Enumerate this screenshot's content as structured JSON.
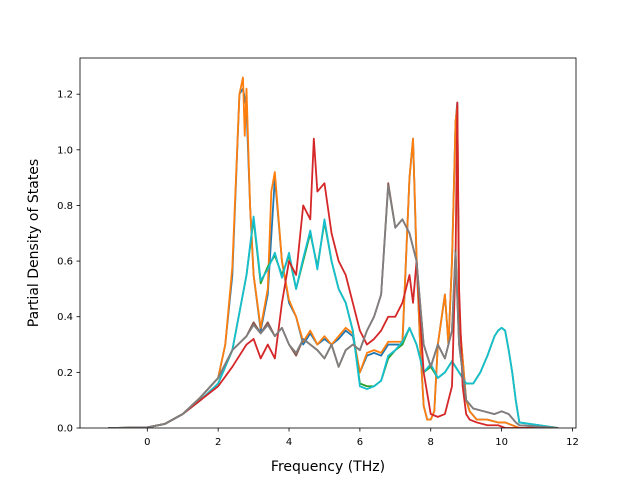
{
  "chart_data": {
    "type": "line",
    "title": "",
    "xlabel": "Frequency (THz)",
    "ylabel": "Partial Density of States",
    "xlim": [
      -1.9,
      12.1
    ],
    "ylim": [
      0.0,
      1.33
    ],
    "xticks": [
      0,
      2,
      4,
      6,
      8,
      10,
      12
    ],
    "xtick_labels": [
      "0",
      "2",
      "4",
      "6",
      "8",
      "10",
      "12"
    ],
    "yticks": [
      0.0,
      0.2,
      0.4,
      0.6,
      0.8,
      1.0,
      1.2
    ],
    "ytick_labels": [
      "0.0",
      "0.2",
      "0.4",
      "0.6",
      "0.8",
      "1.0",
      "1.2"
    ],
    "grid": false,
    "legend": "none",
    "series": [
      {
        "color": "#1f77b4",
        "x": [
          -1.1,
          0,
          0.5,
          1,
          1.5,
          2,
          2.2,
          2.4,
          2.6,
          2.7,
          2.8,
          2.9,
          3.0,
          3.2,
          3.4,
          3.6,
          3.8,
          4.0,
          4.2,
          4.4,
          4.6,
          4.8,
          5.0,
          5.2,
          5.4,
          5.6,
          5.8,
          6.0,
          6.2,
          6.4,
          6.6,
          6.8,
          7.0,
          7.2,
          7.4,
          7.5,
          7.6,
          7.7,
          7.8,
          7.9,
          8.0,
          8.1,
          8.2,
          8.4,
          8.5,
          8.6,
          8.7,
          8.75,
          8.8,
          8.9,
          9.0,
          9.1,
          9.3,
          9.6,
          9.9,
          10.1,
          10.3,
          10.5,
          11.6
        ],
        "y": [
          0,
          0.002,
          0.015,
          0.05,
          0.11,
          0.18,
          0.3,
          0.55,
          1.2,
          1.22,
          1.15,
          0.8,
          0.55,
          0.35,
          0.48,
          0.9,
          0.6,
          0.45,
          0.4,
          0.3,
          0.34,
          0.3,
          0.32,
          0.3,
          0.32,
          0.35,
          0.33,
          0.2,
          0.26,
          0.27,
          0.26,
          0.3,
          0.3,
          0.3,
          0.9,
          1.04,
          0.6,
          0.3,
          0.08,
          0.03,
          0.03,
          0.06,
          0.3,
          0.48,
          0.3,
          0.6,
          1.1,
          1.17,
          0.4,
          0.25,
          0.1,
          0.06,
          0.03,
          0.03,
          0.02,
          0.02,
          0.01,
          0,
          0
        ]
      },
      {
        "color": "#ff7f0e",
        "x": [
          -1.1,
          0,
          0.5,
          1,
          1.5,
          2,
          2.2,
          2.4,
          2.6,
          2.7,
          2.75,
          2.8,
          2.9,
          3.0,
          3.2,
          3.4,
          3.5,
          3.6,
          3.8,
          4.0,
          4.2,
          4.4,
          4.6,
          4.8,
          5.0,
          5.2,
          5.4,
          5.6,
          5.8,
          6.0,
          6.2,
          6.4,
          6.6,
          6.8,
          7.0,
          7.2,
          7.4,
          7.5,
          7.6,
          7.7,
          7.8,
          7.9,
          8.0,
          8.1,
          8.2,
          8.4,
          8.5,
          8.6,
          8.7,
          8.75,
          8.8,
          8.9,
          9.0,
          9.1,
          9.3,
          9.6,
          9.9,
          10.1,
          10.3,
          10.5,
          11.6
        ],
        "y": [
          0,
          0.002,
          0.015,
          0.05,
          0.11,
          0.18,
          0.3,
          0.58,
          1.2,
          1.26,
          1.05,
          1.22,
          0.8,
          0.55,
          0.36,
          0.5,
          0.85,
          0.92,
          0.6,
          0.46,
          0.4,
          0.31,
          0.35,
          0.3,
          0.33,
          0.3,
          0.33,
          0.36,
          0.34,
          0.2,
          0.27,
          0.28,
          0.27,
          0.31,
          0.31,
          0.31,
          0.9,
          1.04,
          0.62,
          0.3,
          0.08,
          0.03,
          0.03,
          0.06,
          0.3,
          0.48,
          0.3,
          0.6,
          1.1,
          1.16,
          0.4,
          0.25,
          0.1,
          0.06,
          0.03,
          0.03,
          0.02,
          0.02,
          0.01,
          0,
          0
        ]
      },
      {
        "color": "#2ca02c",
        "x": [
          -1.1,
          0,
          0.5,
          1,
          1.5,
          2,
          2.4,
          2.8,
          3.0,
          3.2,
          3.4,
          3.6,
          3.8,
          4.0,
          4.2,
          4.4,
          4.6,
          4.8,
          5.0,
          5.2,
          5.4,
          5.6,
          5.8,
          6.0,
          6.2,
          6.4,
          6.6,
          6.8,
          7.0,
          7.2,
          7.4,
          7.6,
          7.8,
          8.0,
          8.2,
          8.4,
          8.6,
          8.8,
          9.0,
          9.2,
          9.4,
          9.6,
          9.8,
          9.9,
          10.0,
          10.1,
          10.2,
          10.3,
          10.4,
          10.5,
          11.6
        ],
        "y": [
          0,
          0.002,
          0.015,
          0.05,
          0.1,
          0.16,
          0.28,
          0.55,
          0.75,
          0.52,
          0.58,
          0.62,
          0.55,
          0.62,
          0.5,
          0.6,
          0.7,
          0.58,
          0.74,
          0.6,
          0.5,
          0.45,
          0.35,
          0.16,
          0.15,
          0.15,
          0.17,
          0.25,
          0.28,
          0.3,
          0.36,
          0.3,
          0.2,
          0.22,
          0.18,
          0.2,
          0.24,
          0.2,
          0.16,
          0.16,
          0.2,
          0.26,
          0.33,
          0.35,
          0.36,
          0.35,
          0.28,
          0.2,
          0.1,
          0.02,
          0
        ]
      },
      {
        "color": "#17becf",
        "x": [
          -1.1,
          0,
          0.5,
          1,
          1.5,
          2,
          2.4,
          2.8,
          3.0,
          3.2,
          3.4,
          3.6,
          3.8,
          4.0,
          4.2,
          4.4,
          4.6,
          4.8,
          5.0,
          5.2,
          5.4,
          5.6,
          5.8,
          6.0,
          6.2,
          6.4,
          6.6,
          6.8,
          7.0,
          7.2,
          7.4,
          7.6,
          7.8,
          8.0,
          8.2,
          8.4,
          8.6,
          8.8,
          9.0,
          9.2,
          9.4,
          9.6,
          9.8,
          9.9,
          10.0,
          10.1,
          10.2,
          10.3,
          10.4,
          10.5,
          11.6
        ],
        "y": [
          0,
          0.002,
          0.015,
          0.05,
          0.1,
          0.16,
          0.28,
          0.55,
          0.76,
          0.53,
          0.57,
          0.63,
          0.54,
          0.63,
          0.5,
          0.61,
          0.71,
          0.57,
          0.75,
          0.6,
          0.5,
          0.45,
          0.35,
          0.15,
          0.14,
          0.15,
          0.17,
          0.26,
          0.28,
          0.31,
          0.36,
          0.3,
          0.2,
          0.23,
          0.18,
          0.2,
          0.24,
          0.2,
          0.16,
          0.16,
          0.2,
          0.26,
          0.33,
          0.35,
          0.36,
          0.35,
          0.28,
          0.2,
          0.1,
          0.02,
          0
        ]
      },
      {
        "color": "#d62728",
        "x": [
          -1.1,
          0,
          0.5,
          1,
          1.5,
          2,
          2.4,
          2.8,
          3.0,
          3.2,
          3.4,
          3.6,
          3.8,
          4.0,
          4.2,
          4.4,
          4.6,
          4.7,
          4.8,
          5.0,
          5.2,
          5.4,
          5.6,
          5.8,
          6.0,
          6.2,
          6.4,
          6.6,
          6.8,
          7.0,
          7.2,
          7.4,
          7.5,
          7.6,
          7.8,
          8.0,
          8.2,
          8.4,
          8.6,
          8.7,
          8.75,
          8.8,
          8.9,
          9.0,
          9.1,
          9.3,
          9.6,
          9.9,
          10.1,
          10.3,
          10.5,
          11.6
        ],
        "y": [
          0,
          0.002,
          0.015,
          0.05,
          0.1,
          0.15,
          0.22,
          0.3,
          0.32,
          0.25,
          0.3,
          0.25,
          0.45,
          0.6,
          0.55,
          0.8,
          0.75,
          1.04,
          0.85,
          0.88,
          0.7,
          0.6,
          0.55,
          0.45,
          0.35,
          0.3,
          0.32,
          0.35,
          0.4,
          0.4,
          0.45,
          0.55,
          0.45,
          0.6,
          0.2,
          0.05,
          0.04,
          0.05,
          0.15,
          0.6,
          1.17,
          0.5,
          0.15,
          0.05,
          0.03,
          0.02,
          0.01,
          0.01,
          0,
          0,
          0,
          0
        ]
      },
      {
        "color": "#8c564b",
        "x": [
          -1.1,
          0,
          0.5,
          1,
          1.5,
          2,
          2.4,
          2.8,
          3.0,
          3.2,
          3.4,
          3.6,
          3.8,
          4.0,
          4.2,
          4.4,
          4.6,
          4.8,
          5.0,
          5.2,
          5.4,
          5.6,
          5.8,
          6.0,
          6.2,
          6.4,
          6.6,
          6.8,
          7.0,
          7.2,
          7.4,
          7.6,
          7.8,
          8.0,
          8.2,
          8.4,
          8.6,
          8.7,
          8.8,
          8.9,
          9.0,
          9.2,
          9.5,
          9.8,
          10.0,
          10.2,
          10.4,
          10.5,
          11.6
        ],
        "y": [
          0,
          0.002,
          0.015,
          0.05,
          0.11,
          0.18,
          0.28,
          0.33,
          0.38,
          0.34,
          0.38,
          0.33,
          0.36,
          0.3,
          0.26,
          0.32,
          0.3,
          0.28,
          0.25,
          0.3,
          0.22,
          0.28,
          0.3,
          0.28,
          0.35,
          0.4,
          0.48,
          0.88,
          0.72,
          0.75,
          0.7,
          0.6,
          0.3,
          0.22,
          0.3,
          0.25,
          0.35,
          0.64,
          0.3,
          0.2,
          0.1,
          0.07,
          0.06,
          0.05,
          0.06,
          0.05,
          0.02,
          0.01,
          0
        ]
      },
      {
        "color": "#7f7f7f",
        "x": [
          -1.1,
          0,
          0.5,
          1,
          1.5,
          2,
          2.4,
          2.8,
          3.0,
          3.2,
          3.4,
          3.6,
          3.8,
          4.0,
          4.2,
          4.4,
          4.6,
          4.8,
          5.0,
          5.2,
          5.4,
          5.6,
          5.8,
          6.0,
          6.2,
          6.4,
          6.6,
          6.8,
          7.0,
          7.2,
          7.4,
          7.6,
          7.8,
          8.0,
          8.2,
          8.4,
          8.6,
          8.7,
          8.8,
          8.9,
          9.0,
          9.2,
          9.5,
          9.8,
          10.0,
          10.2,
          10.4,
          10.5,
          11.6
        ],
        "y": [
          0,
          0.002,
          0.015,
          0.05,
          0.11,
          0.18,
          0.28,
          0.33,
          0.37,
          0.34,
          0.37,
          0.33,
          0.36,
          0.3,
          0.27,
          0.32,
          0.3,
          0.28,
          0.25,
          0.3,
          0.22,
          0.28,
          0.3,
          0.28,
          0.35,
          0.4,
          0.48,
          0.87,
          0.72,
          0.75,
          0.7,
          0.6,
          0.3,
          0.22,
          0.3,
          0.25,
          0.35,
          0.63,
          0.3,
          0.2,
          0.1,
          0.07,
          0.06,
          0.05,
          0.06,
          0.05,
          0.02,
          0.01,
          0
        ]
      }
    ]
  }
}
